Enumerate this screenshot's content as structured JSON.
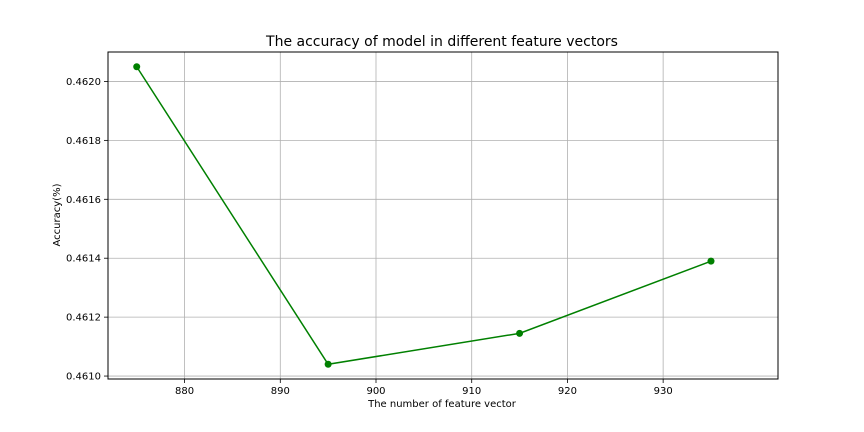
{
  "chart_data": {
    "type": "line",
    "title": "The accuracy of model in different feature vectors",
    "xlabel": "The number of feature vector",
    "ylabel": "Accuracy(%)",
    "xlim": [
      872,
      942
    ],
    "ylim": [
      0.46099,
      0.4621
    ],
    "xticks": [
      880,
      890,
      900,
      910,
      920,
      930
    ],
    "yticks": [
      0.461,
      0.4612,
      0.4614,
      0.4616,
      0.4618,
      0.462
    ],
    "ytick_labels": [
      "0.4610",
      "0.4612",
      "0.4614",
      "0.4616",
      "0.4618",
      "0.4620"
    ],
    "grid": true,
    "legend": "none",
    "series": [
      {
        "color": "#008000",
        "marker": "circle",
        "x": [
          875,
          895,
          915,
          935
        ],
        "y": [
          0.46205,
          0.46104,
          0.461145,
          0.46139
        ]
      }
    ]
  }
}
